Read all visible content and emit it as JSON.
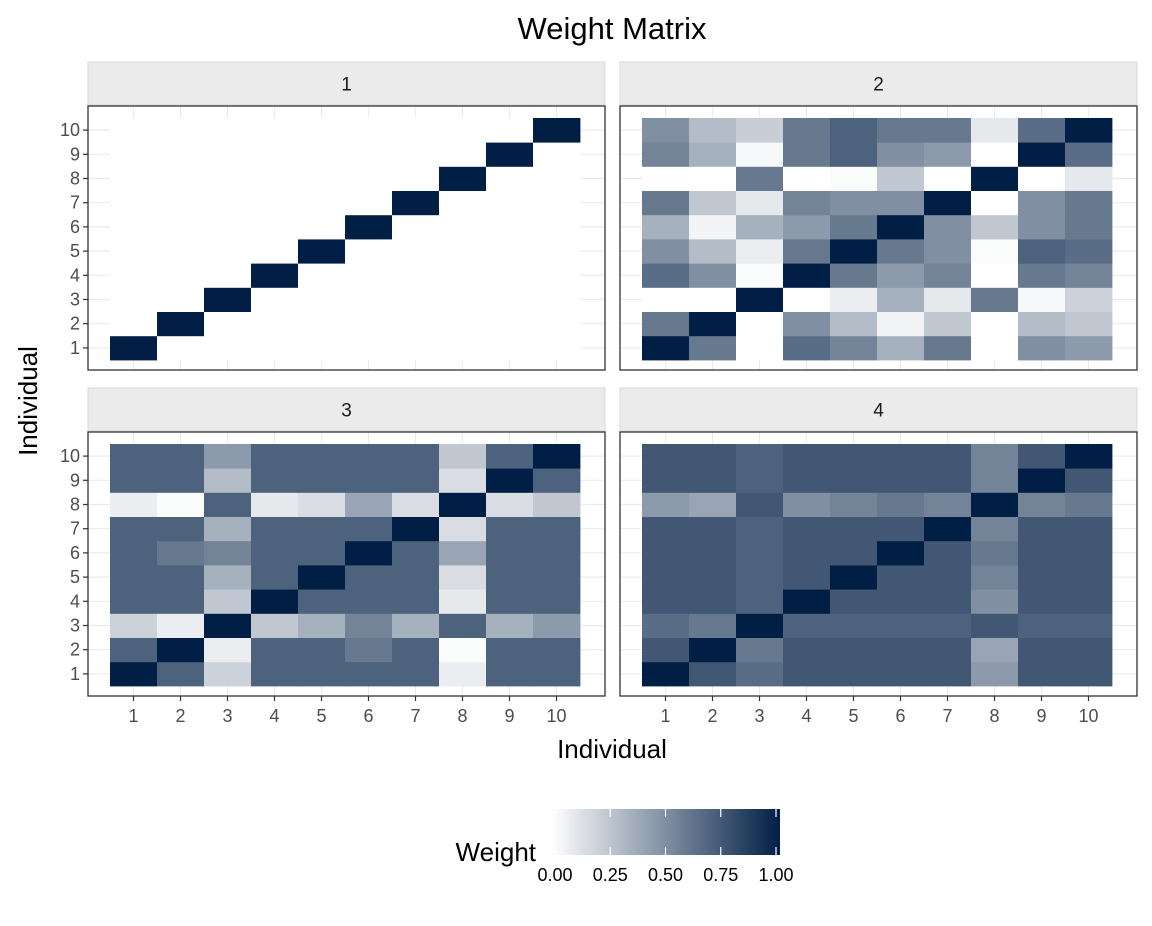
{
  "chart_data": {
    "type": "heatmap",
    "title": "Weight Matrix",
    "xlabel": "Individual",
    "ylabel": "Individual",
    "x_categories": [
      "1",
      "2",
      "3",
      "4",
      "5",
      "6",
      "7",
      "8",
      "9",
      "10"
    ],
    "y_categories": [
      "1",
      "2",
      "3",
      "4",
      "5",
      "6",
      "7",
      "8",
      "9",
      "10"
    ],
    "value_range": [
      0,
      1
    ],
    "grid": true,
    "legend": {
      "title": "Weight",
      "position": "bottom",
      "ticks": [
        "0.00",
        "0.25",
        "0.50",
        "0.75",
        "1.00"
      ],
      "low_color": "#ffffff",
      "high_color": "#011f45"
    },
    "panels": [
      {
        "label": "1",
        "rows": [
          [
            1,
            0,
            0,
            0,
            0,
            0,
            0,
            0,
            0,
            0
          ],
          [
            0,
            1,
            0,
            0,
            0,
            0,
            0,
            0,
            0,
            0
          ],
          [
            0,
            0,
            1,
            0,
            0,
            0,
            0,
            0,
            0,
            0
          ],
          [
            0,
            0,
            0,
            1,
            0,
            0,
            0,
            0,
            0,
            0
          ],
          [
            0,
            0,
            0,
            0,
            1,
            0,
            0,
            0,
            0,
            0
          ],
          [
            0,
            0,
            0,
            0,
            0,
            1,
            0,
            0,
            0,
            0
          ],
          [
            0,
            0,
            0,
            0,
            0,
            0,
            1,
            0,
            0,
            0
          ],
          [
            0,
            0,
            0,
            0,
            0,
            0,
            0,
            1,
            0,
            0
          ],
          [
            0,
            0,
            0,
            0,
            0,
            0,
            0,
            0,
            1,
            0
          ],
          [
            0,
            0,
            0,
            0,
            0,
            0,
            0,
            0,
            0,
            1
          ]
        ]
      },
      {
        "label": "2",
        "rows": [
          [
            1.0,
            0.6,
            0.0,
            0.65,
            0.55,
            0.35,
            0.6,
            0.0,
            0.5,
            0.45
          ],
          [
            0.6,
            1.0,
            0.0,
            0.5,
            0.3,
            0.05,
            0.25,
            0.0,
            0.3,
            0.25
          ],
          [
            0.0,
            0.0,
            1.0,
            0.0,
            0.08,
            0.35,
            0.1,
            0.6,
            0.03,
            0.2
          ],
          [
            0.65,
            0.5,
            0.02,
            1.0,
            0.6,
            0.45,
            0.55,
            0.0,
            0.6,
            0.55
          ],
          [
            0.5,
            0.3,
            0.08,
            0.6,
            1.0,
            0.6,
            0.5,
            0.02,
            0.7,
            0.65
          ],
          [
            0.35,
            0.05,
            0.35,
            0.45,
            0.6,
            1.0,
            0.5,
            0.25,
            0.5,
            0.6
          ],
          [
            0.6,
            0.25,
            0.1,
            0.55,
            0.5,
            0.5,
            1.0,
            0.0,
            0.5,
            0.6
          ],
          [
            0.0,
            0.0,
            0.6,
            0.0,
            0.02,
            0.25,
            0.0,
            1.0,
            0.0,
            0.1
          ],
          [
            0.55,
            0.35,
            0.03,
            0.6,
            0.7,
            0.5,
            0.45,
            0.0,
            1.0,
            0.65
          ],
          [
            0.5,
            0.3,
            0.22,
            0.6,
            0.7,
            0.6,
            0.6,
            0.1,
            0.65,
            1.0
          ]
        ]
      },
      {
        "label": "3",
        "rows": [
          [
            1.0,
            0.7,
            0.2,
            0.7,
            0.7,
            0.7,
            0.7,
            0.08,
            0.7,
            0.7
          ],
          [
            0.7,
            1.0,
            0.08,
            0.7,
            0.7,
            0.6,
            0.7,
            0.02,
            0.7,
            0.7
          ],
          [
            0.2,
            0.08,
            1.0,
            0.25,
            0.35,
            0.55,
            0.35,
            0.7,
            0.35,
            0.45
          ],
          [
            0.7,
            0.7,
            0.25,
            1.0,
            0.7,
            0.7,
            0.7,
            0.1,
            0.7,
            0.7
          ],
          [
            0.7,
            0.7,
            0.35,
            0.7,
            1.0,
            0.7,
            0.7,
            0.15,
            0.7,
            0.7
          ],
          [
            0.7,
            0.6,
            0.55,
            0.7,
            0.7,
            1.0,
            0.7,
            0.4,
            0.7,
            0.7
          ],
          [
            0.7,
            0.7,
            0.35,
            0.7,
            0.7,
            0.7,
            1.0,
            0.15,
            0.7,
            0.7
          ],
          [
            0.08,
            0.02,
            0.7,
            0.1,
            0.15,
            0.4,
            0.15,
            1.0,
            0.15,
            0.25
          ],
          [
            0.7,
            0.7,
            0.3,
            0.7,
            0.7,
            0.7,
            0.7,
            0.15,
            1.0,
            0.7
          ],
          [
            0.7,
            0.7,
            0.45,
            0.7,
            0.7,
            0.7,
            0.7,
            0.25,
            0.7,
            1.0
          ]
        ]
      },
      {
        "label": "4",
        "rows": [
          [
            1.0,
            0.75,
            0.65,
            0.75,
            0.75,
            0.75,
            0.75,
            0.45,
            0.75,
            0.75
          ],
          [
            0.75,
            1.0,
            0.6,
            0.75,
            0.75,
            0.75,
            0.75,
            0.4,
            0.75,
            0.75
          ],
          [
            0.65,
            0.6,
            1.0,
            0.7,
            0.7,
            0.7,
            0.7,
            0.75,
            0.7,
            0.7
          ],
          [
            0.75,
            0.75,
            0.7,
            1.0,
            0.75,
            0.75,
            0.75,
            0.5,
            0.75,
            0.75
          ],
          [
            0.75,
            0.75,
            0.7,
            0.75,
            1.0,
            0.75,
            0.75,
            0.55,
            0.75,
            0.75
          ],
          [
            0.75,
            0.75,
            0.7,
            0.75,
            0.75,
            1.0,
            0.75,
            0.6,
            0.75,
            0.75
          ],
          [
            0.75,
            0.75,
            0.7,
            0.75,
            0.75,
            0.75,
            1.0,
            0.55,
            0.75,
            0.75
          ],
          [
            0.45,
            0.4,
            0.75,
            0.5,
            0.55,
            0.6,
            0.55,
            1.0,
            0.55,
            0.6
          ],
          [
            0.75,
            0.75,
            0.7,
            0.75,
            0.75,
            0.75,
            0.75,
            0.55,
            1.0,
            0.75
          ],
          [
            0.75,
            0.75,
            0.7,
            0.75,
            0.75,
            0.75,
            0.75,
            0.55,
            0.75,
            1.0
          ]
        ]
      }
    ]
  }
}
